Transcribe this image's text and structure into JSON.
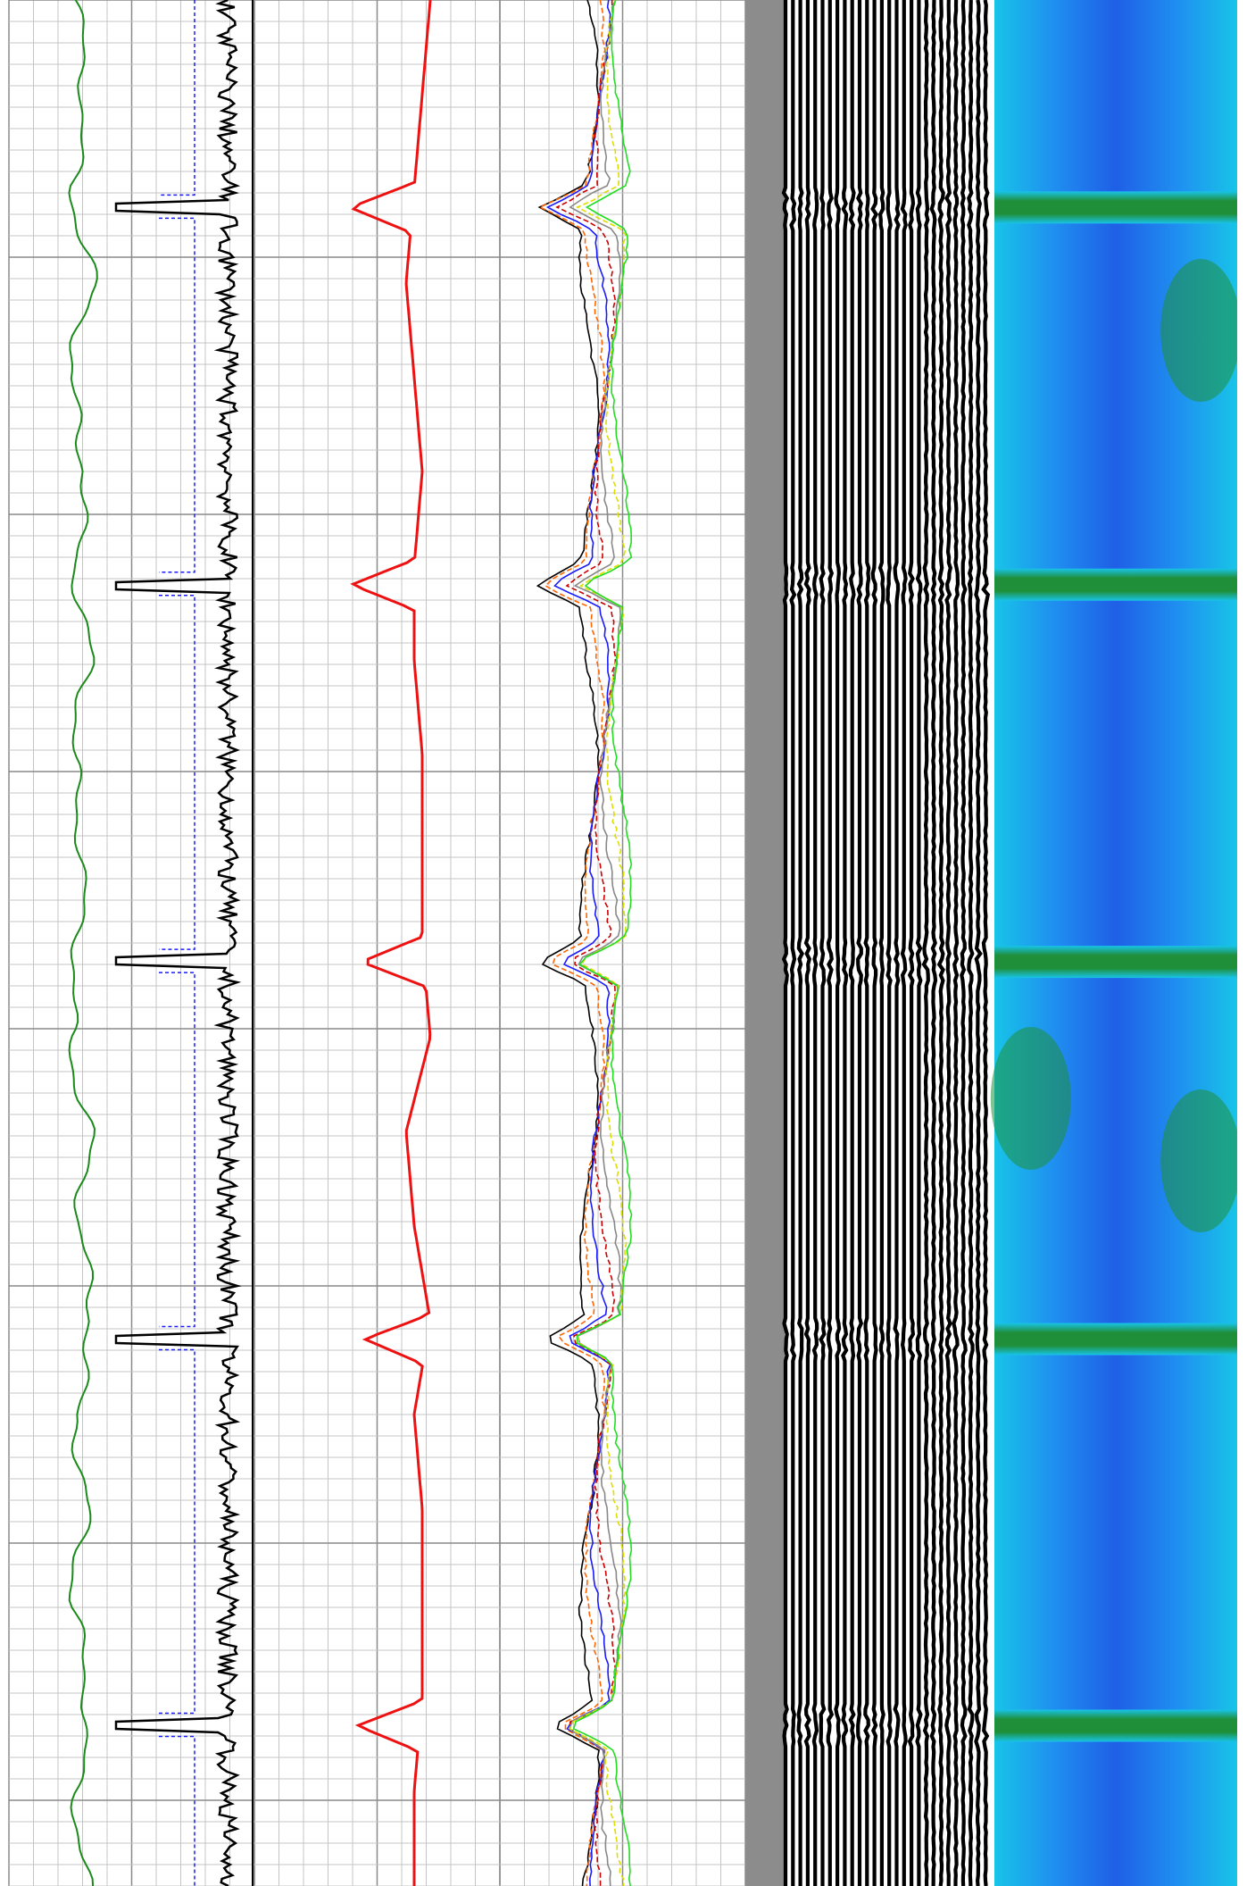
{
  "colors": {
    "background": "#ffffff",
    "grid_minor": "#c4c4c4",
    "grid_major": "#8a8a8a",
    "separator_band": "#8c8c8c",
    "gamma_curve": "#1a8a1a",
    "sp_curve": "#1a1aff",
    "amplitude_curve": "#000000",
    "travel_time_curve": "#ee1111",
    "multi_curves": [
      "#000000",
      "#ff6600",
      "#1a1aff",
      "#cc0000",
      "#888888",
      "#dddd00",
      "#22dd22"
    ],
    "image_blue": "#1f5fe6",
    "image_cyan": "#18c4e8",
    "image_green": "#1f8f3a",
    "seismic_black": "#000000"
  },
  "chart_data": {
    "type": "line",
    "title": "",
    "depth_range": [
      0,
      100
    ],
    "collar_depths": [
      11,
      31,
      51,
      71,
      91.5
    ],
    "tracks": [
      {
        "name": "",
        "curves": [
          {
            "name": "",
            "style": "green-wiggle",
            "depth": [
              0,
              5,
              10,
              15,
              20,
              25,
              30,
              35,
              40,
              45,
              50,
              55,
              60,
              65,
              70,
              75,
              80,
              85,
              90,
              95,
              100
            ],
            "value": [
              0.45,
              0.6,
              0.4,
              0.7,
              0.35,
              0.6,
              0.45,
              0.65,
              0.4,
              0.55,
              0.5,
              0.35,
              0.65,
              0.5,
              0.7,
              0.45,
              0.6,
              0.4,
              0.65,
              0.45,
              0.6
            ]
          }
        ]
      },
      {
        "name": "",
        "curves": [
          {
            "name": "",
            "style": "blue-dashed-step",
            "baseline": 0.52
          },
          {
            "name": "",
            "style": "black-amplitude",
            "center": 0.8,
            "spike_to": 0.05
          }
        ]
      },
      {
        "name": "",
        "curves": [
          {
            "name": "",
            "style": "red-travel-time",
            "depth": [
              0,
              5,
              10,
              15,
              20,
              25,
              30,
              35,
              40,
              45,
              50,
              55,
              60,
              65,
              70,
              75,
              80,
              85,
              90,
              95,
              100
            ],
            "value": [
              0.65,
              0.6,
              0.55,
              0.5,
              0.55,
              0.6,
              0.55,
              0.55,
              0.6,
              0.6,
              0.6,
              0.65,
              0.5,
              0.55,
              0.65,
              0.55,
              0.6,
              0.6,
              0.6,
              0.55,
              0.55
            ]
          }
        ]
      },
      {
        "name": "",
        "curves": [
          {
            "name": "",
            "style": "multi-bundle",
            "count": 7
          }
        ]
      }
    ]
  }
}
